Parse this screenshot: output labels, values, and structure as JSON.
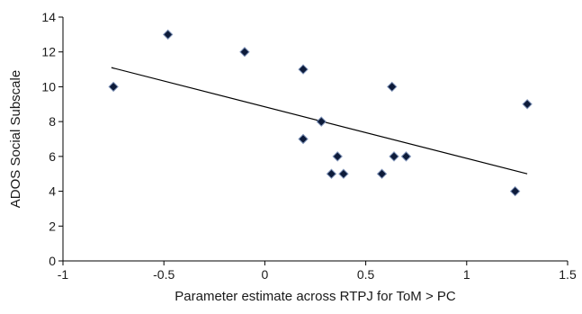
{
  "chart_data": {
    "type": "scatter",
    "title": "",
    "xlabel": "Parameter estimate across RTPJ for ToM > PC",
    "ylabel": "ADOS Social Subscale",
    "xlim": [
      -1,
      1.5
    ],
    "ylim": [
      0,
      14
    ],
    "x_ticks": [
      "-1",
      "-0.5",
      "0",
      "0.5",
      "1",
      "1.5"
    ],
    "y_ticks": [
      "0",
      "2",
      "4",
      "6",
      "8",
      "10",
      "12",
      "14"
    ],
    "grid": false,
    "legend": "none",
    "marker": "diamond",
    "marker_color": "#0d1b3a",
    "marker_edge_color": "#7f93b8",
    "line_color": "#000000",
    "points": [
      {
        "x": -0.75,
        "y": 10
      },
      {
        "x": -0.48,
        "y": 13
      },
      {
        "x": -0.1,
        "y": 12
      },
      {
        "x": 0.19,
        "y": 11
      },
      {
        "x": 0.19,
        "y": 7
      },
      {
        "x": 0.28,
        "y": 8
      },
      {
        "x": 0.33,
        "y": 5
      },
      {
        "x": 0.36,
        "y": 6
      },
      {
        "x": 0.39,
        "y": 5
      },
      {
        "x": 0.58,
        "y": 5
      },
      {
        "x": 0.63,
        "y": 10
      },
      {
        "x": 0.64,
        "y": 6
      },
      {
        "x": 0.7,
        "y": 6
      },
      {
        "x": 1.24,
        "y": 4
      },
      {
        "x": 1.3,
        "y": 9
      }
    ],
    "trendline": {
      "x": [
        -0.76,
        1.3
      ],
      "y": [
        11.1,
        5.0
      ]
    }
  }
}
